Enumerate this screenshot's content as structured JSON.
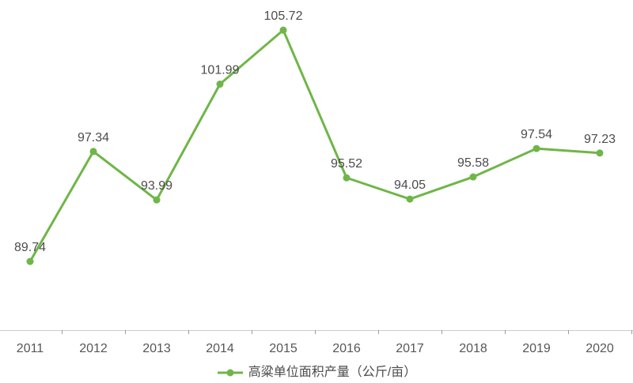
{
  "chart_data": {
    "type": "line",
    "title": "",
    "xlabel": "",
    "ylabel": "",
    "categories": [
      "2011",
      "2012",
      "2013",
      "2014",
      "2015",
      "2016",
      "2017",
      "2018",
      "2019",
      "2020"
    ],
    "series": [
      {
        "name": "高粱单位面积产量（公斤/亩）",
        "values": [
          89.74,
          97.34,
          93.99,
          101.99,
          105.72,
          95.52,
          94.05,
          95.58,
          97.54,
          97.23
        ]
      }
    ],
    "ylim": [
      85,
      107.8
    ],
    "grid": false,
    "data_labels": true,
    "legend_position": "bottom-center"
  },
  "style": {
    "line_color": "#6fb648",
    "marker_color": "#6fb648",
    "data_label_color": "#4c4c4c",
    "axis_label_color": "#565656",
    "axis_line_color": "#cccccc",
    "tick_color": "#9b9b9b",
    "background": "#ffffff"
  }
}
